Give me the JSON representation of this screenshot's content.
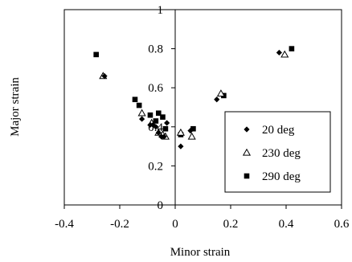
{
  "chart_data": {
    "type": "scatter",
    "xlabel": "Minor strain",
    "ylabel": "Major strain",
    "xlim": [
      -0.4,
      0.6
    ],
    "ylim": [
      0,
      1
    ],
    "x_ticks": [
      "-0.4",
      "-0.2",
      "0",
      "0.2",
      "0.4",
      "0.6"
    ],
    "y_ticks": [
      "0",
      "0.2",
      "0.4",
      "0.6",
      "0.8",
      "1"
    ],
    "grid": false,
    "legend_position": "bottom-right",
    "series": [
      {
        "name": "20 deg",
        "marker": "diamond",
        "color": "#000000",
        "points": [
          [
            -0.255,
            0.66
          ],
          [
            -0.12,
            0.44
          ],
          [
            -0.09,
            0.41
          ],
          [
            -0.08,
            0.41
          ],
          [
            -0.07,
            0.4
          ],
          [
            -0.06,
            0.37
          ],
          [
            -0.05,
            0.35
          ],
          [
            -0.04,
            0.35
          ],
          [
            -0.03,
            0.42
          ],
          [
            0.02,
            0.3
          ],
          [
            0.055,
            0.38
          ],
          [
            0.15,
            0.54
          ],
          [
            0.375,
            0.78
          ]
        ]
      },
      {
        "name": "230 deg",
        "marker": "triangle-open",
        "color": "#000000",
        "points": [
          [
            -0.26,
            0.66
          ],
          [
            -0.12,
            0.47
          ],
          [
            -0.085,
            0.42
          ],
          [
            -0.06,
            0.37
          ],
          [
            -0.045,
            0.36
          ],
          [
            -0.035,
            0.35
          ],
          [
            0.02,
            0.37
          ],
          [
            0.06,
            0.35
          ],
          [
            0.165,
            0.57
          ],
          [
            0.395,
            0.77
          ]
        ]
      },
      {
        "name": "290 deg",
        "marker": "square",
        "color": "#000000",
        "points": [
          [
            -0.285,
            0.77
          ],
          [
            -0.145,
            0.54
          ],
          [
            -0.13,
            0.51
          ],
          [
            -0.09,
            0.46
          ],
          [
            -0.07,
            0.43
          ],
          [
            -0.06,
            0.47
          ],
          [
            -0.045,
            0.45
          ],
          [
            -0.035,
            0.39
          ],
          [
            0.02,
            0.36
          ],
          [
            0.065,
            0.39
          ],
          [
            0.175,
            0.56
          ],
          [
            0.42,
            0.8
          ]
        ]
      }
    ]
  }
}
